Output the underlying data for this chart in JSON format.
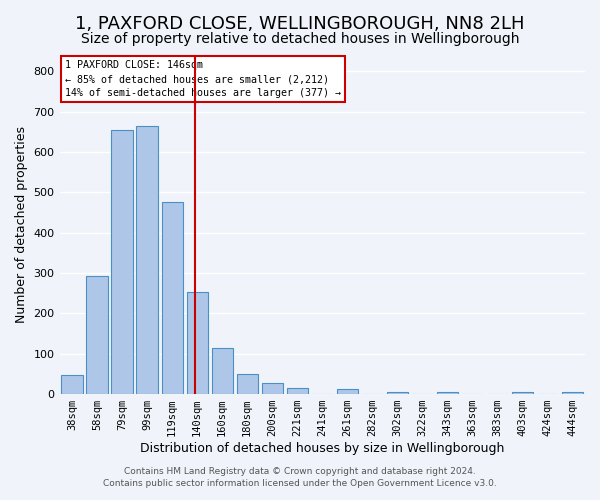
{
  "title": "1, PAXFORD CLOSE, WELLINGBOROUGH, NN8 2LH",
  "subtitle": "Size of property relative to detached houses in Wellingborough",
  "xlabel": "Distribution of detached houses by size in Wellingborough",
  "ylabel": "Number of detached properties",
  "bar_labels": [
    "38sqm",
    "58sqm",
    "79sqm",
    "99sqm",
    "119sqm",
    "140sqm",
    "160sqm",
    "180sqm",
    "200sqm",
    "221sqm",
    "241sqm",
    "261sqm",
    "282sqm",
    "302sqm",
    "322sqm",
    "343sqm",
    "363sqm",
    "383sqm",
    "403sqm",
    "424sqm",
    "444sqm"
  ],
  "bar_values": [
    47,
    293,
    653,
    665,
    477,
    253,
    113,
    50,
    28,
    14,
    0,
    12,
    0,
    5,
    0,
    5,
    0,
    0,
    5,
    0,
    5
  ],
  "bar_color": "#aec6e8",
  "bar_edgecolor": "#4a90c4",
  "vline_x": 5,
  "vline_color": "#cc0000",
  "annotation_title": "1 PAXFORD CLOSE: 146sqm",
  "annotation_line1": "← 85% of detached houses are smaller (2,212)",
  "annotation_line2": "14% of semi-detached houses are larger (377) →",
  "annotation_box_color": "#cc0000",
  "ylim": [
    0,
    840
  ],
  "yticks": [
    0,
    100,
    200,
    300,
    400,
    500,
    600,
    700,
    800
  ],
  "footer1": "Contains HM Land Registry data © Crown copyright and database right 2024.",
  "footer2": "Contains public sector information licensed under the Open Government Licence v3.0.",
  "background_color": "#f0f4fa",
  "grid_color": "#ffffff",
  "title_fontsize": 13,
  "subtitle_fontsize": 10,
  "tick_fontsize": 7.5,
  "ylabel_fontsize": 9,
  "xlabel_fontsize": 9,
  "footer_fontsize": 6.5
}
